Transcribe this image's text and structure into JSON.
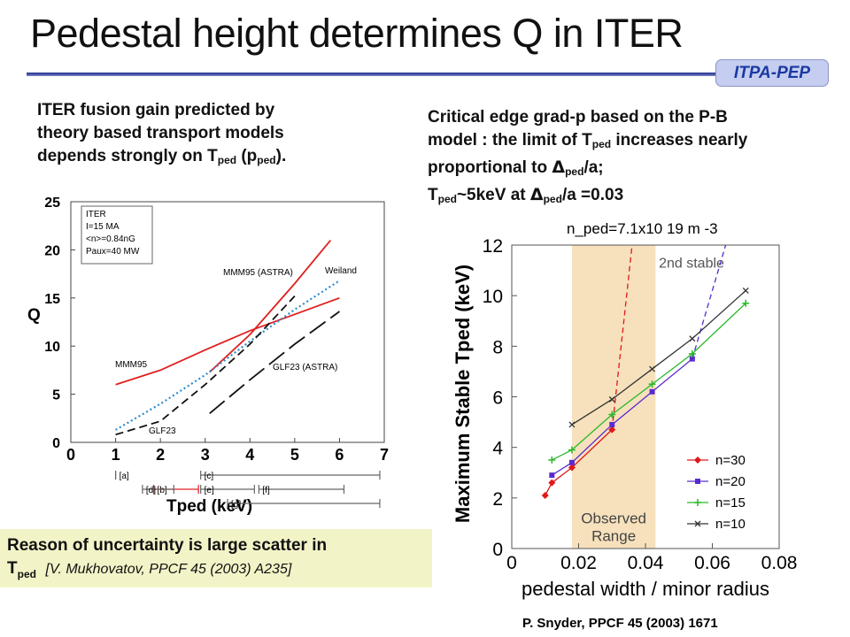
{
  "title": "Pedestal height determines Q in  ITER",
  "badge": "ITPA-PEP",
  "left_note": {
    "line1": "ITER fusion gain predicted by",
    "line2": "theory based transport models",
    "line3_pre": "depends strongly on T",
    "sub": "ped",
    "line3_mid": " (p",
    "line3_post": ")."
  },
  "right_note": {
    "line1": "Critical edge grad-p based on the P-B",
    "line2_pre": "model : the limit of T",
    "line2_post": " increases nearly",
    "line3_pre": "proportional to ",
    "delta": "Δ",
    "line3_post": "/a;",
    "line4_pre": "T",
    "line4_mid": "~5keV at ",
    "line4_post": "/a =0.03",
    "sub": "ped"
  },
  "footer": {
    "line1": "Reason of uncertainty is large scatter in",
    "t": "T",
    "sub": "ped",
    "ref": "[V. Mukhovatov, PPCF 45 (2003) A235]"
  },
  "credit": "P. Snyder, PPCF 45 (2003) 1671",
  "chart_data": [
    {
      "type": "line",
      "xlabel": "Tped (keV)",
      "ylabel": "Q",
      "xlim": [
        0,
        7
      ],
      "ylim": [
        0,
        25
      ],
      "x_ticks": [
        "0",
        "1",
        "2",
        "3",
        "4",
        "5",
        "6",
        "7"
      ],
      "y_ticks": [
        "0",
        "5",
        "10",
        "15",
        "20",
        "25"
      ],
      "legend_box": [
        "ITER",
        "I=15 MA",
        "<n>=0.84nG",
        "Paux=40 MW"
      ],
      "annotations": [
        "MMM95",
        "MMM95 (ASTRA)",
        "Weiland",
        "GLF23 (ASTRA)",
        "GLF23"
      ],
      "range_labels": [
        "[a]",
        "[b]",
        "[c]",
        "[d]",
        "[e]",
        "[f]",
        "[g]"
      ],
      "ranges": [
        [
          1.0,
          1.0
        ],
        [
          1.85,
          2.85
        ],
        [
          2.9,
          6.9
        ],
        [
          1.6,
          2.3
        ],
        [
          2.9,
          4.1
        ],
        [
          4.2,
          6.1
        ],
        [
          3.5,
          6.9
        ]
      ],
      "series": [
        {
          "name": "MMM95",
          "color": "#e02020",
          "dash": "solid",
          "x": [
            1.0,
            2.0,
            3.0,
            4.0,
            5.0,
            6.0
          ],
          "y": [
            6.0,
            7.5,
            9.6,
            11.6,
            13.3,
            15.0
          ]
        },
        {
          "name": "MMM95 (ASTRA)",
          "color": "#e02020",
          "dash": "solid",
          "x": [
            3.1,
            4.0,
            5.0,
            5.8
          ],
          "y": [
            7.3,
            11.2,
            16.5,
            21.0
          ]
        },
        {
          "name": "Weiland",
          "color": "#2a8ad0",
          "dash": "dotted",
          "x": [
            1.0,
            2.0,
            3.0,
            4.0,
            5.0,
            6.0
          ],
          "y": [
            1.3,
            4.0,
            7.0,
            10.5,
            13.8,
            16.8
          ]
        },
        {
          "name": "GLF23 (ASTRA)",
          "color": "#111111",
          "dash": "longdash",
          "x": [
            3.1,
            4.0,
            5.0,
            6.0
          ],
          "y": [
            3.0,
            6.5,
            10.2,
            13.6
          ]
        },
        {
          "name": "GLF23",
          "color": "#111111",
          "dash": "dashed",
          "x": [
            1.0,
            2.0,
            3.0,
            4.0,
            5.0
          ],
          "y": [
            0.8,
            2.2,
            6.0,
            10.2,
            15.2
          ]
        }
      ]
    },
    {
      "type": "line",
      "xlabel": "pedestal width / minor radius",
      "ylabel": "Maximum Stable Tped (keV)",
      "xlim": [
        0,
        0.08
      ],
      "ylim": [
        0,
        12
      ],
      "x_ticks": [
        "0",
        "0.02",
        "0.04",
        "0.06",
        "0.08"
      ],
      "y_ticks": [
        "0",
        "2",
        "4",
        "6",
        "8",
        "10",
        "12"
      ],
      "shaded_range": [
        0.018,
        0.043
      ],
      "shaded_label": [
        "Observed",
        "Range"
      ],
      "region_label": "2nd stable",
      "density_label": "n_ped=7.1x10 19 m -3",
      "legend": "inside-lower-right",
      "series": [
        {
          "name": "n=30",
          "color": "#e01818",
          "marker": "diamond",
          "x": [
            0.01,
            0.012,
            0.018,
            0.03
          ],
          "y": [
            2.1,
            2.6,
            3.2,
            4.7
          ]
        },
        {
          "name": "n=20",
          "color": "#5a2ad0",
          "marker": "square",
          "x": [
            0.012,
            0.018,
            0.03,
            0.042,
            0.054
          ],
          "y": [
            2.9,
            3.4,
            4.9,
            6.2,
            7.5
          ]
        },
        {
          "name": "n=15",
          "color": "#2ab82a",
          "marker": "plus",
          "x": [
            0.012,
            0.018,
            0.03,
            0.042,
            0.054,
            0.07
          ],
          "y": [
            3.5,
            3.9,
            5.3,
            6.5,
            7.7,
            9.7
          ]
        },
        {
          "name": "n=10",
          "color": "#333333",
          "marker": "cross",
          "x": [
            0.018,
            0.03,
            0.042,
            0.054,
            0.07
          ],
          "y": [
            4.9,
            5.9,
            7.1,
            8.3,
            10.2
          ]
        }
      ],
      "stability_lines": [
        {
          "color": "#e01818",
          "x": [
            0.03,
            0.036
          ],
          "y": [
            4.7,
            12.0
          ]
        },
        {
          "color": "#5a2ad0",
          "x": [
            0.054,
            0.064
          ],
          "y": [
            7.5,
            12.0
          ]
        }
      ]
    }
  ]
}
